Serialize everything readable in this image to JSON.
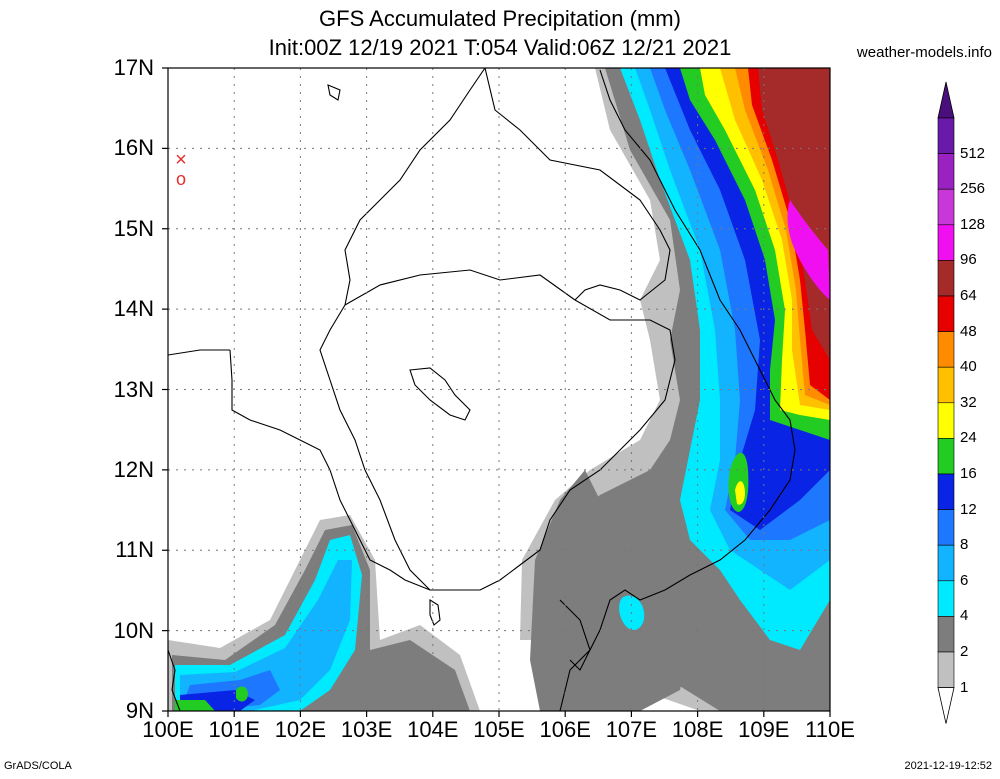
{
  "title": {
    "line1": "GFS Accumulated Precipitation (mm)",
    "line2": "Init:00Z 12/19 2021 T:054 Valid:06Z 12/21 2021"
  },
  "source": "weather-models.info",
  "footer": {
    "left": "GrADS/COLA",
    "right": "2021-12-19-12:52"
  },
  "axes": {
    "y_ticks": [
      "17N",
      "16N",
      "15N",
      "14N",
      "13N",
      "12N",
      "11N",
      "10N",
      "9N"
    ],
    "x_ticks": [
      "100E",
      "101E",
      "102E",
      "103E",
      "104E",
      "105E",
      "106E",
      "107E",
      "108E",
      "109E",
      "110E"
    ],
    "lat_range": [
      9,
      17
    ],
    "lon_range": [
      100,
      110
    ]
  },
  "legend": {
    "labels": [
      "512",
      "256",
      "128",
      "96",
      "64",
      "48",
      "40",
      "32",
      "24",
      "16",
      "12",
      "8",
      "6",
      "4",
      "2",
      "1"
    ],
    "colors": [
      "#6a1aa8",
      "#9a22c0",
      "#c838d8",
      "#f00ff0",
      "#a52a2a",
      "#e60000",
      "#ff8c00",
      "#ffc000",
      "#ffff00",
      "#22cc22",
      "#0a24e6",
      "#1e78ff",
      "#12b4ff",
      "#00eaff",
      "#7d7d7d",
      "#c0c0c0"
    ],
    "top_arrow_color": "#4b0f7d",
    "bottom_arrow_color": "#ffffff"
  },
  "marker": {
    "symbols": [
      "×",
      "o"
    ],
    "color": "#e03030"
  }
}
